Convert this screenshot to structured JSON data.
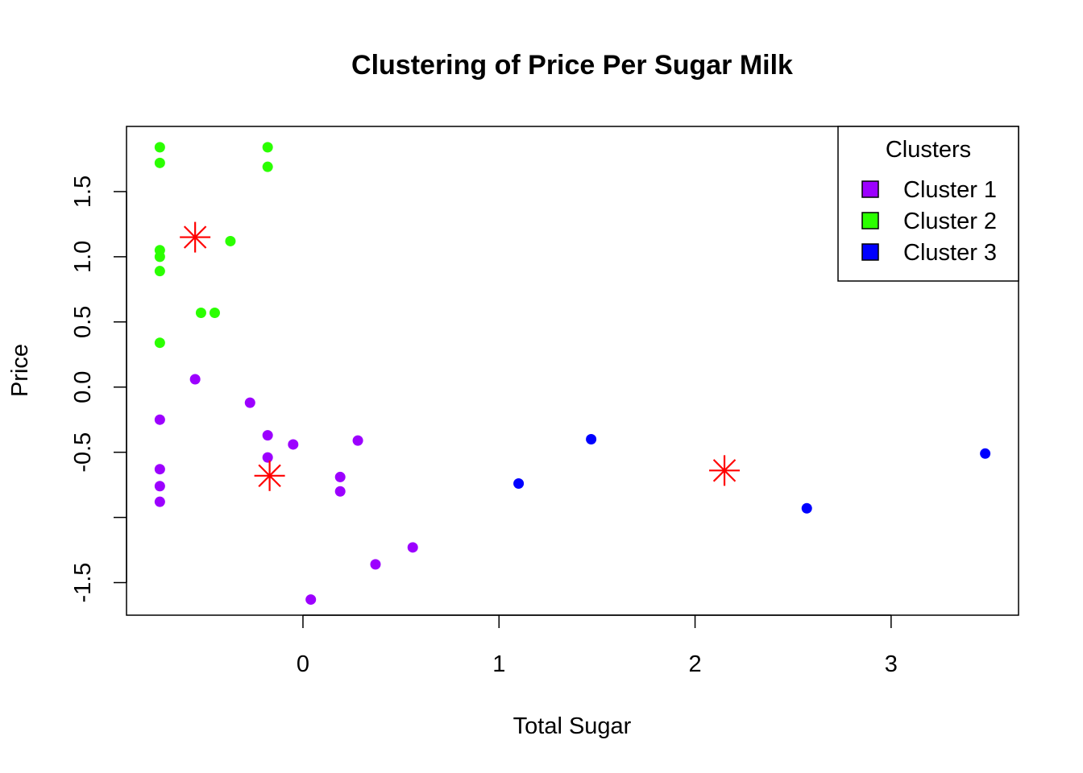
{
  "chart_data": {
    "type": "scatter",
    "title": "Clustering of Price Per Sugar Milk",
    "xlabel": "Total Sugar",
    "ylabel": "Price",
    "xlim": [
      -0.9,
      3.65
    ],
    "ylim": [
      -1.75,
      2.0
    ],
    "x_ticks": [
      0,
      1,
      2,
      3
    ],
    "x_tick_labels": [
      "0",
      "1",
      "2",
      "3"
    ],
    "y_ticks": [
      -1.5,
      -1.0,
      -0.5,
      0.0,
      0.5,
      1.0,
      1.5
    ],
    "y_tick_labels": [
      "-1.5",
      "",
      "-0.5",
      "0.0",
      "0.5",
      "1.0",
      "1.5"
    ],
    "grid": false,
    "legend": {
      "title": "Clusters",
      "position": "top-right",
      "entries": [
        "Cluster 1",
        "Cluster 2",
        "Cluster 3"
      ]
    },
    "series": [
      {
        "name": "Cluster 1",
        "color": "#9C00FF",
        "points": [
          [
            -0.55,
            0.06
          ],
          [
            -0.27,
            -0.12
          ],
          [
            -0.18,
            -0.37
          ],
          [
            -0.05,
            -0.44
          ],
          [
            0.28,
            -0.41
          ],
          [
            -0.18,
            -0.54
          ],
          [
            -0.73,
            -0.25
          ],
          [
            -0.73,
            -0.63
          ],
          [
            -0.73,
            -0.76
          ],
          [
            -0.73,
            -0.88
          ],
          [
            0.19,
            -0.69
          ],
          [
            0.19,
            -0.8
          ],
          [
            0.56,
            -1.23
          ],
          [
            0.37,
            -1.36
          ],
          [
            0.04,
            -1.63
          ]
        ]
      },
      {
        "name": "Cluster 2",
        "color": "#2BFF00",
        "points": [
          [
            -0.73,
            1.84
          ],
          [
            -0.73,
            1.72
          ],
          [
            -0.18,
            1.84
          ],
          [
            -0.18,
            1.69
          ],
          [
            -0.37,
            1.12
          ],
          [
            -0.73,
            1.05
          ],
          [
            -0.73,
            1.0
          ],
          [
            -0.73,
            0.89
          ],
          [
            -0.52,
            0.57
          ],
          [
            -0.45,
            0.57
          ],
          [
            -0.73,
            0.34
          ]
        ]
      },
      {
        "name": "Cluster 3",
        "color": "#0000FF",
        "points": [
          [
            1.1,
            -0.74
          ],
          [
            1.47,
            -0.4
          ],
          [
            2.57,
            -0.93
          ],
          [
            3.48,
            -0.51
          ]
        ]
      }
    ],
    "centers": {
      "color": "#FF0000",
      "marker": "asterisk",
      "points": [
        [
          -0.55,
          1.15
        ],
        [
          -0.17,
          -0.68
        ],
        [
          2.15,
          -0.64
        ]
      ]
    }
  }
}
